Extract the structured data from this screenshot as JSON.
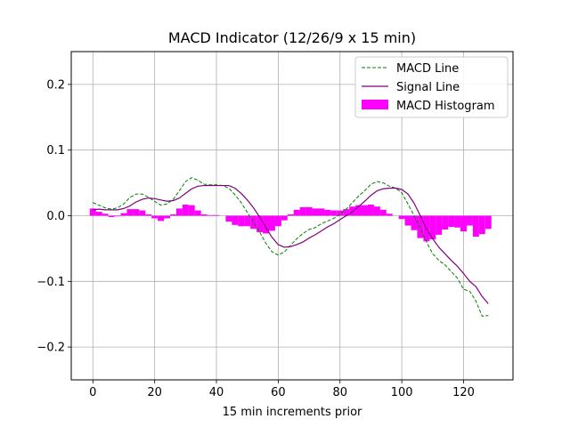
{
  "chart_data": {
    "type": "line",
    "title": "MACD Indicator (12/26/9 x 15 min)",
    "xlabel": "15 min increments prior",
    "ylabel": "",
    "xlim": [
      -7,
      136
    ],
    "ylim": [
      -0.25,
      0.25
    ],
    "xticks": [
      0,
      20,
      40,
      60,
      80,
      100,
      120
    ],
    "yticks": [
      -0.2,
      -0.1,
      0.0,
      0.1,
      0.2
    ],
    "xtick_labels": [
      "0",
      "20",
      "40",
      "60",
      "80",
      "100",
      "120"
    ],
    "ytick_labels": [
      "−0.2",
      "−0.1",
      "0.0",
      "0.1",
      "0.2"
    ],
    "grid": true,
    "legend_position": "upper right",
    "series": [
      {
        "name": "MACD Line",
        "style": "dashed",
        "color": "#008000",
        "x": [
          0,
          2,
          4,
          6,
          8,
          10,
          12,
          14,
          16,
          18,
          20,
          22,
          24,
          26,
          28,
          30,
          32,
          34,
          36,
          38,
          40,
          42,
          44,
          46,
          48,
          50,
          52,
          54,
          56,
          58,
          60,
          62,
          64,
          66,
          68,
          70,
          72,
          74,
          76,
          78,
          80,
          82,
          84,
          86,
          88,
          90,
          92,
          94,
          96,
          98,
          100,
          102,
          104,
          106,
          108,
          110,
          112,
          114,
          116,
          118,
          120,
          122,
          124,
          126,
          128
        ],
        "values": [
          0.02,
          0.016,
          0.012,
          0.01,
          0.012,
          0.018,
          0.028,
          0.033,
          0.033,
          0.028,
          0.022,
          0.016,
          0.018,
          0.025,
          0.038,
          0.052,
          0.058,
          0.054,
          0.048,
          0.047,
          0.047,
          0.046,
          0.042,
          0.032,
          0.02,
          0.005,
          -0.01,
          -0.025,
          -0.042,
          -0.055,
          -0.06,
          -0.055,
          -0.045,
          -0.035,
          -0.027,
          -0.021,
          -0.018,
          -0.012,
          -0.008,
          -0.004,
          0.002,
          0.01,
          0.02,
          0.03,
          0.038,
          0.048,
          0.052,
          0.05,
          0.045,
          0.042,
          0.035,
          0.018,
          0.0,
          -0.02,
          -0.04,
          -0.058,
          -0.068,
          -0.075,
          -0.085,
          -0.095,
          -0.112,
          -0.115,
          -0.13,
          -0.153,
          -0.152
        ]
      },
      {
        "name": "Signal Line",
        "style": "solid",
        "color": "#800080",
        "x": [
          0,
          2,
          4,
          6,
          8,
          10,
          12,
          14,
          16,
          18,
          20,
          22,
          24,
          26,
          28,
          30,
          32,
          34,
          36,
          38,
          40,
          42,
          44,
          46,
          48,
          50,
          52,
          54,
          56,
          58,
          60,
          62,
          64,
          66,
          68,
          70,
          72,
          74,
          76,
          78,
          80,
          82,
          84,
          86,
          88,
          90,
          92,
          94,
          96,
          98,
          100,
          102,
          104,
          106,
          108,
          110,
          112,
          114,
          116,
          118,
          120,
          122,
          124,
          126,
          128
        ],
        "values": [
          0.009,
          0.01,
          0.009,
          0.009,
          0.009,
          0.011,
          0.015,
          0.021,
          0.025,
          0.027,
          0.026,
          0.024,
          0.022,
          0.023,
          0.027,
          0.034,
          0.041,
          0.045,
          0.046,
          0.046,
          0.046,
          0.046,
          0.046,
          0.042,
          0.034,
          0.024,
          0.012,
          -0.002,
          -0.018,
          -0.033,
          -0.044,
          -0.048,
          -0.047,
          -0.044,
          -0.04,
          -0.034,
          -0.029,
          -0.023,
          -0.017,
          -0.012,
          -0.006,
          0.0,
          0.006,
          0.014,
          0.022,
          0.031,
          0.038,
          0.041,
          0.042,
          0.042,
          0.04,
          0.033,
          0.019,
          0.0,
          -0.02,
          -0.035,
          -0.048,
          -0.058,
          -0.068,
          -0.077,
          -0.088,
          -0.1,
          -0.108,
          -0.123,
          -0.134
        ]
      },
      {
        "name": "MACD Histogram",
        "style": "bar",
        "color": "#FF00FF",
        "x": [
          0,
          2,
          4,
          6,
          8,
          10,
          12,
          14,
          16,
          18,
          20,
          22,
          24,
          26,
          28,
          30,
          32,
          34,
          36,
          38,
          40,
          42,
          44,
          46,
          48,
          50,
          52,
          54,
          56,
          58,
          60,
          62,
          64,
          66,
          68,
          70,
          72,
          74,
          76,
          78,
          80,
          82,
          84,
          86,
          88,
          90,
          92,
          94,
          96,
          98,
          100,
          102,
          104,
          106,
          108,
          110,
          112,
          114,
          116,
          118,
          120,
          122,
          124,
          126,
          128
        ],
        "values": [
          0.011,
          0.006,
          0.003,
          -0.002,
          -0.001,
          0.004,
          0.01,
          0.01,
          0.008,
          0.002,
          -0.004,
          -0.008,
          -0.004,
          0.002,
          0.011,
          0.017,
          0.016,
          0.008,
          0.002,
          0.001,
          0.001,
          0.0,
          -0.009,
          -0.014,
          -0.016,
          -0.016,
          -0.02,
          -0.025,
          -0.027,
          -0.023,
          -0.016,
          -0.007,
          0.002,
          0.009,
          0.013,
          0.013,
          0.011,
          0.011,
          0.009,
          0.008,
          0.008,
          0.01,
          0.014,
          0.016,
          0.016,
          0.017,
          0.014,
          0.009,
          0.003,
          0.0,
          -0.005,
          -0.015,
          -0.022,
          -0.034,
          -0.039,
          -0.036,
          -0.029,
          -0.021,
          -0.017,
          -0.018,
          -0.024,
          -0.015,
          -0.032,
          -0.028,
          -0.02
        ]
      }
    ]
  }
}
